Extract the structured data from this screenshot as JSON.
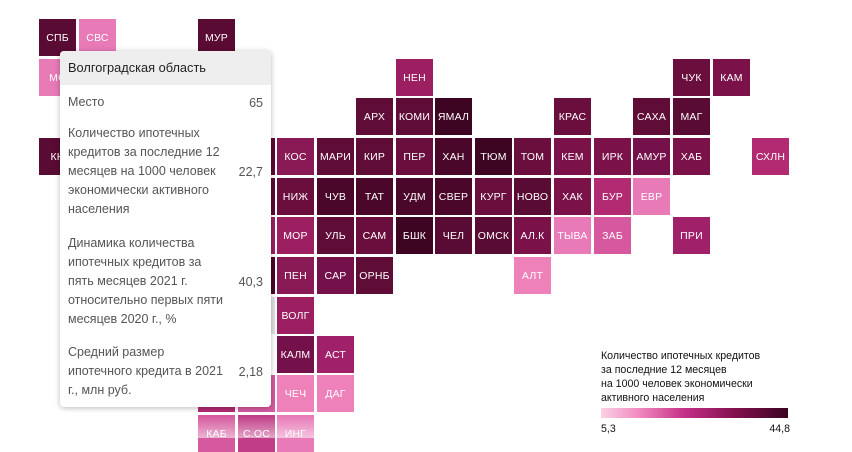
{
  "tiles": [
    {
      "label": "СПБ",
      "color": "#5a0b33"
    },
    {
      "label": "СВС",
      "color": "#e87ab8"
    },
    {
      "label": "МУР",
      "color": "#5a0b33"
    },
    {
      "label": "МС",
      "color": "#e87ab8"
    },
    {
      "label": "НЕН",
      "color": "#9c1f62"
    },
    {
      "label": "ЧУК",
      "color": "#6a0e3d"
    },
    {
      "label": "КАМ",
      "color": "#7a1249"
    },
    {
      "label": "АРХ",
      "color": "#5f0c37"
    },
    {
      "label": "КОМИ",
      "color": "#5f0c37"
    },
    {
      "label": "ЯМАЛ",
      "color": "#3e0522"
    },
    {
      "label": "КРАС",
      "color": "#6a0e3d"
    },
    {
      "label": "САХА",
      "color": "#5f0c37"
    },
    {
      "label": "МАГ",
      "color": "#5a0b33"
    },
    {
      "label": "КН",
      "color": "#5a0b33"
    },
    {
      "label": "КОС",
      "color": "#8a1a56"
    },
    {
      "label": "МАРИ",
      "color": "#5f0c37"
    },
    {
      "label": "КИР",
      "color": "#5f0c37"
    },
    {
      "label": "ПЕР",
      "color": "#6a0e3d"
    },
    {
      "label": "ХАН",
      "color": "#4a0729"
    },
    {
      "label": "ТЮМ",
      "color": "#3e0522"
    },
    {
      "label": "ТОМ",
      "color": "#6a0e3d"
    },
    {
      "label": "КЕМ",
      "color": "#7a1249"
    },
    {
      "label": "ИРК",
      "color": "#7a1249"
    },
    {
      "label": "АМУР",
      "color": "#74114a"
    },
    {
      "label": "ХАБ",
      "color": "#7a1249"
    },
    {
      "label": "СХЛН",
      "color": "#b12a72"
    },
    {
      "label": "НИЖ",
      "color": "#6a0e3d"
    },
    {
      "label": "ЧУВ",
      "color": "#4a0729"
    },
    {
      "label": "ТАТ",
      "color": "#4a0729"
    },
    {
      "label": "УДМ",
      "color": "#4a0729"
    },
    {
      "label": "СВЕР",
      "color": "#4a0729"
    },
    {
      "label": "КУРГ",
      "color": "#6a0e3d"
    },
    {
      "label": "НОВО",
      "color": "#5a0b33"
    },
    {
      "label": "ХАК",
      "color": "#7a1249"
    },
    {
      "label": "БУР",
      "color": "#b12a72"
    },
    {
      "label": "ЕВР",
      "color": "#e87ab8"
    },
    {
      "label": "МОР",
      "color": "#9c1f62"
    },
    {
      "label": "УЛЬ",
      "color": "#5f0c37"
    },
    {
      "label": "САМ",
      "color": "#6a0e3d"
    },
    {
      "label": "БШК",
      "color": "#3e0522"
    },
    {
      "label": "ЧЕЛ",
      "color": "#5a0b33"
    },
    {
      "label": "ОМСК",
      "color": "#5a0b33"
    },
    {
      "label": "АЛ.К",
      "color": "#7a1249"
    },
    {
      "label": "ТЫВА",
      "color": "#e87ab8"
    },
    {
      "label": "ЗАБ",
      "color": "#d659a0"
    },
    {
      "label": "ПРИ",
      "color": "#a0216a"
    },
    {
      "label": "ПЕН",
      "color": "#8a1a56"
    },
    {
      "label": "САР",
      "color": "#74114a"
    },
    {
      "label": "ОРНБ",
      "color": "#5f0c37"
    },
    {
      "label": "АЛТ",
      "color": "#ee80ba"
    },
    {
      "label": "ВОЛГ",
      "color": "#9c1f62"
    },
    {
      "label": "КАЛМ",
      "color": "#74114a"
    },
    {
      "label": "АСТ",
      "color": "#a0216a"
    },
    {
      "label": "ЧЕЧ",
      "color": "#ee80ba"
    },
    {
      "label": "ДАГ",
      "color": "#ee80ba"
    },
    {
      "label": "КАБ",
      "color": "#d659a0"
    },
    {
      "label": "С.ОС",
      "color": "#c13d88"
    },
    {
      "label": "ИНГ",
      "color": "#e87ab8"
    },
    {
      "label": "",
      "color": "#9c1f62"
    },
    {
      "label": "",
      "color": "#e0e0e0"
    },
    {
      "label": "",
      "color": "#5a0b33"
    },
    {
      "label": "",
      "color": "#5a0b33"
    },
    {
      "label": "",
      "color": "#4a0729"
    },
    {
      "label": "",
      "color": "#b12a72"
    },
    {
      "label": "",
      "color": "#d659a0"
    }
  ],
  "tooltip": {
    "region": "Волгоградская область",
    "rows": [
      {
        "label": "Место",
        "value": "65"
      },
      {
        "label": "Количество ипотечных кредитов за последние 12 месяцев на 1000 человек экономически активного населения",
        "value": "22,7"
      },
      {
        "label": "Динамика количества ипотечных кредитов за пять месяцев 2021 г. относительно первых пяти месяцев 2020 г., %",
        "value": "40,3"
      },
      {
        "label": "Средний размер ипотечного кредита в 2021 г., млн руб.",
        "value": "2,18"
      }
    ]
  },
  "legend": {
    "title_lines": [
      "Количество ипотечных кредитов",
      "за последние 12 месяцев",
      "на 1000 человек экономически",
      "активного населения"
    ],
    "min": "5,3",
    "max": "44,8"
  }
}
